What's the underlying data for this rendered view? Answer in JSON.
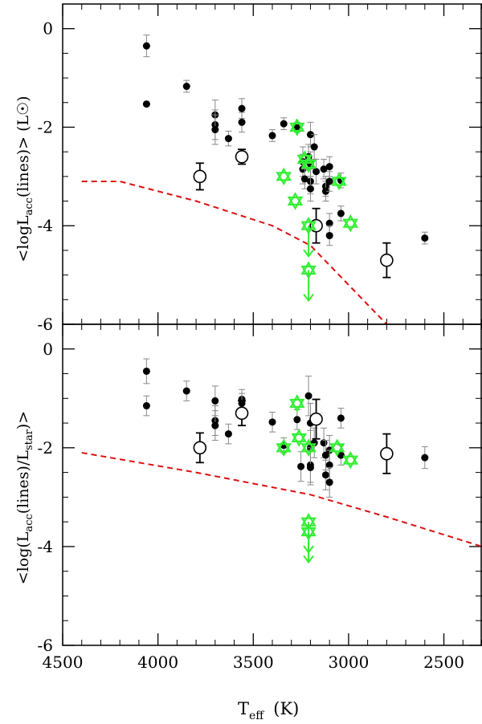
{
  "chart_data": {
    "type": "scatter",
    "xlim": [
      4500,
      2300
    ],
    "xlabel": {
      "main": "T",
      "sub": "eff",
      "unit": "(K)"
    },
    "x_ticks": [
      4500,
      4000,
      3500,
      3000,
      2500
    ],
    "panels": [
      {
        "name": "top",
        "ylim": [
          -6,
          0.5
        ],
        "y_ticks": [
          0,
          -2,
          -4,
          -6
        ],
        "ylabel": {
          "pre": "<logL",
          "sub": "acc",
          "post": "(lines)>  (L",
          "sun": "☉",
          "close": ")"
        },
        "series": [
          {
            "name": "filled",
            "marker": "filled-circle",
            "color": "#000000",
            "points": [
              {
                "x": 4060,
                "y": -0.35,
                "err": 0.22
              },
              {
                "x": 4060,
                "y": -1.53,
                "err": 0
              },
              {
                "x": 3850,
                "y": -1.17,
                "err": 0.12
              },
              {
                "x": 3700,
                "y": -1.75,
                "err": 0.3
              },
              {
                "x": 3700,
                "y": -1.95,
                "err": 0.3
              },
              {
                "x": 3700,
                "y": -2.05,
                "err": 0.3
              },
              {
                "x": 3630,
                "y": -2.23,
                "err": 0.15
              },
              {
                "x": 3560,
                "y": -1.62,
                "err": 0.2
              },
              {
                "x": 3560,
                "y": -1.9,
                "err": 0.2
              },
              {
                "x": 3400,
                "y": -2.17,
                "err": 0.12
              },
              {
                "x": 3340,
                "y": -1.93,
                "err": 0.12
              },
              {
                "x": 3270,
                "y": -2.0,
                "err": 0.1
              },
              {
                "x": 3240,
                "y": -2.7,
                "err": 0.3
              },
              {
                "x": 3240,
                "y": -2.85,
                "err": 0.3
              },
              {
                "x": 3230,
                "y": -3.05,
                "err": 0.2
              },
              {
                "x": 3210,
                "y": -2.6,
                "err": 0.25
              },
              {
                "x": 3200,
                "y": -2.15,
                "err": 0.25
              },
              {
                "x": 3200,
                "y": -2.75,
                "err": 0.25
              },
              {
                "x": 3200,
                "y": -3.1,
                "err": 0.25
              },
              {
                "x": 3200,
                "y": -3.25,
                "err": 0.25
              },
              {
                "x": 3180,
                "y": -2.4,
                "err": 0.25
              },
              {
                "x": 3170,
                "y": -2.9,
                "err": 0.25
              },
              {
                "x": 3130,
                "y": -2.85,
                "err": 0.2
              },
              {
                "x": 3120,
                "y": -3.2,
                "err": 0.2
              },
              {
                "x": 3120,
                "y": -3.3,
                "err": 0.2
              },
              {
                "x": 3100,
                "y": -2.8,
                "err": 0.2
              },
              {
                "x": 3100,
                "y": -3.1,
                "err": 0.2
              },
              {
                "x": 3100,
                "y": -3.95,
                "err": 0.2
              },
              {
                "x": 3100,
                "y": -4.2,
                "err": 0.2
              },
              {
                "x": 3040,
                "y": -3.08,
                "err": 0.15
              },
              {
                "x": 3040,
                "y": -3.75,
                "err": 0.15
              },
              {
                "x": 2600,
                "y": -4.25,
                "err": 0.12
              }
            ]
          },
          {
            "name": "open",
            "marker": "open-circle",
            "color": "#000000",
            "points": [
              {
                "x": 3780,
                "y": -3.0,
                "err": 0.27
              },
              {
                "x": 3560,
                "y": -2.6,
                "err": 0.15
              },
              {
                "x": 3170,
                "y": -4.0,
                "err": 0.35
              },
              {
                "x": 2800,
                "y": -4.7,
                "err": 0.35
              }
            ]
          },
          {
            "name": "star",
            "marker": "star-of-david",
            "color": "#33ee33",
            "points": [
              {
                "x": 3270,
                "y": -2.0,
                "upper": false
              },
              {
                "x": 3230,
                "y": -2.65,
                "upper": false
              },
              {
                "x": 3210,
                "y": -2.75,
                "upper": false
              },
              {
                "x": 3340,
                "y": -3.0,
                "upper": false
              },
              {
                "x": 3280,
                "y": -3.5,
                "upper": false
              },
              {
                "x": 3050,
                "y": -3.1,
                "upper": false
              },
              {
                "x": 2990,
                "y": -3.95,
                "upper": false
              },
              {
                "x": 3210,
                "y": -4.0,
                "upper": true
              },
              {
                "x": 3210,
                "y": -4.9,
                "upper": true
              }
            ]
          }
        ],
        "model_curve": {
          "color": "#dd1111",
          "style": "dashed",
          "points": [
            {
              "x": 4400,
              "y": -3.1
            },
            {
              "x": 4200,
              "y": -3.1
            },
            {
              "x": 3800,
              "y": -3.5
            },
            {
              "x": 3400,
              "y": -4.0
            },
            {
              "x": 3200,
              "y": -4.4
            },
            {
              "x": 3000,
              "y": -5.2
            },
            {
              "x": 2800,
              "y": -6.0
            }
          ]
        }
      },
      {
        "name": "bottom",
        "ylim": [
          -6,
          0.5
        ],
        "y_ticks": [
          0,
          -2,
          -4,
          -6
        ],
        "ylabel": {
          "pre": "<log(L",
          "sub1": "acc",
          "mid": "(lines)/L",
          "sub2": "star",
          "close": ")>"
        },
        "series": [
          {
            "name": "filled",
            "marker": "filled-circle",
            "color": "#000000",
            "points": [
              {
                "x": 4060,
                "y": -0.45,
                "err": 0.25
              },
              {
                "x": 4060,
                "y": -1.15,
                "err": 0.2
              },
              {
                "x": 3850,
                "y": -0.85,
                "err": 0.2
              },
              {
                "x": 3700,
                "y": -1.05,
                "err": 0.3
              },
              {
                "x": 3700,
                "y": -1.45,
                "err": 0.3
              },
              {
                "x": 3700,
                "y": -1.55,
                "err": 0.3
              },
              {
                "x": 3630,
                "y": -1.72,
                "err": 0.2
              },
              {
                "x": 3560,
                "y": -1.02,
                "err": 0.2
              },
              {
                "x": 3560,
                "y": -1.1,
                "err": 0.2
              },
              {
                "x": 3400,
                "y": -1.48,
                "err": 0.2
              },
              {
                "x": 3340,
                "y": -1.95,
                "err": 0.15
              },
              {
                "x": 3270,
                "y": -1.43,
                "err": 0.2
              },
              {
                "x": 3250,
                "y": -2.38,
                "err": 0.3
              },
              {
                "x": 3210,
                "y": -0.95,
                "err": 0.4
              },
              {
                "x": 3200,
                "y": -1.5,
                "err": 0.4
              },
              {
                "x": 3200,
                "y": -2.0,
                "err": 0.35
              },
              {
                "x": 3200,
                "y": -2.35,
                "err": 0.35
              },
              {
                "x": 3200,
                "y": -2.4,
                "err": 0.35
              },
              {
                "x": 3180,
                "y": -1.9,
                "err": 0.3
              },
              {
                "x": 3130,
                "y": -1.9,
                "err": 0.3
              },
              {
                "x": 3120,
                "y": -2.15,
                "err": 0.3
              },
              {
                "x": 3120,
                "y": -2.55,
                "err": 0.3
              },
              {
                "x": 3100,
                "y": -2.05,
                "err": 0.3
              },
              {
                "x": 3100,
                "y": -2.35,
                "err": 0.3
              },
              {
                "x": 3100,
                "y": -2.7,
                "err": 0.3
              },
              {
                "x": 3040,
                "y": -1.4,
                "err": 0.2
              },
              {
                "x": 3040,
                "y": -2.15,
                "err": 0.2
              },
              {
                "x": 2600,
                "y": -2.2,
                "err": 0.22
              }
            ]
          },
          {
            "name": "open",
            "marker": "open-circle",
            "color": "#000000",
            "points": [
              {
                "x": 3780,
                "y": -2.0,
                "err": 0.3
              },
              {
                "x": 3560,
                "y": -1.3,
                "err": 0.25
              },
              {
                "x": 3170,
                "y": -1.42,
                "err": 0.4
              },
              {
                "x": 2800,
                "y": -2.12,
                "err": 0.4
              }
            ]
          },
          {
            "name": "star",
            "marker": "star-of-david",
            "color": "#33ee33",
            "points": [
              {
                "x": 3270,
                "y": -1.1,
                "upper": false
              },
              {
                "x": 3340,
                "y": -2.0,
                "upper": false
              },
              {
                "x": 3260,
                "y": -1.8,
                "upper": false
              },
              {
                "x": 3210,
                "y": -2.0,
                "upper": false
              },
              {
                "x": 3060,
                "y": -2.0,
                "upper": false
              },
              {
                "x": 2990,
                "y": -2.25,
                "upper": false
              },
              {
                "x": 3210,
                "y": -3.5,
                "upper": true
              },
              {
                "x": 3210,
                "y": -3.7,
                "upper": true
              }
            ]
          }
        ],
        "model_curve": {
          "color": "#dd1111",
          "style": "dashed",
          "points": [
            {
              "x": 4400,
              "y": -2.1
            },
            {
              "x": 3800,
              "y": -2.5
            },
            {
              "x": 3200,
              "y": -2.95
            },
            {
              "x": 2800,
              "y": -3.4
            },
            {
              "x": 2300,
              "y": -4.0
            }
          ]
        }
      }
    ]
  }
}
